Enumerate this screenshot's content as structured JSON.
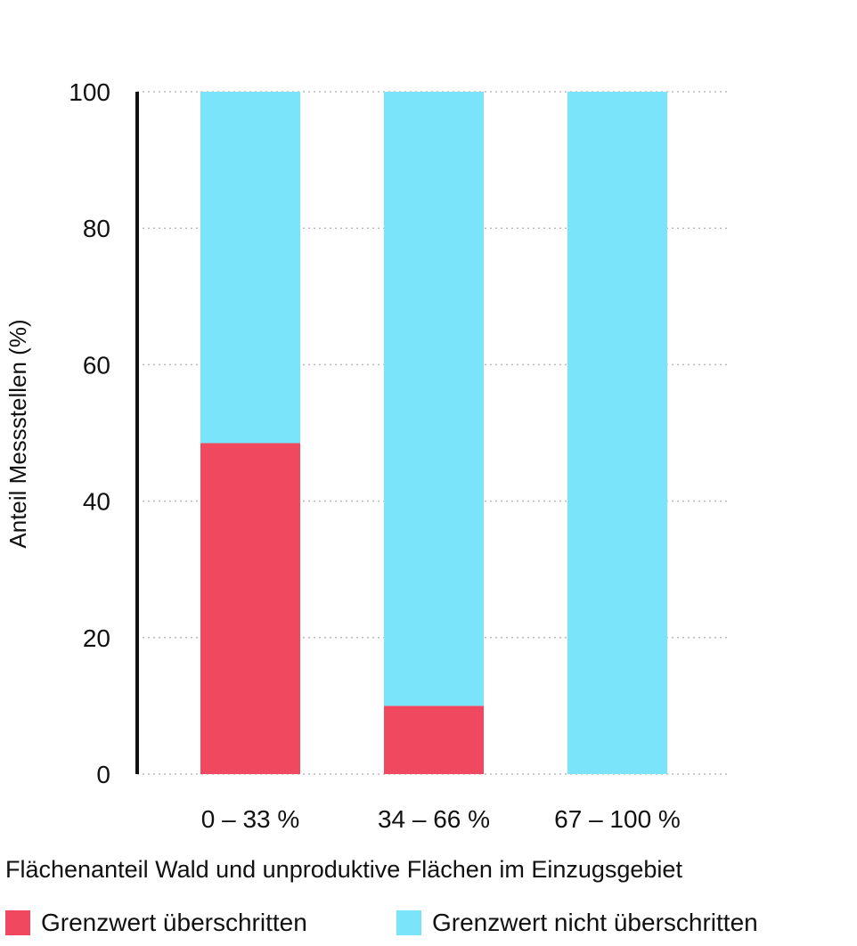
{
  "colors": {
    "exceeded": "#F0485F",
    "not_exceeded": "#7AE4FB",
    "axis": "#111111",
    "grid": "#bbbbbb"
  },
  "chart_data": {
    "type": "bar",
    "stacked": true,
    "title": "",
    "xlabel": "Flächenanteil Wald und unproduktive Flächen im Einzugsgebiet",
    "ylabel": "Anteil Messstellen (%)",
    "ylim": [
      0,
      100
    ],
    "yticks": [
      0,
      20,
      40,
      60,
      80,
      100
    ],
    "categories": [
      "0 – 33 %",
      "34 – 66 %",
      "67 – 100 %"
    ],
    "series": [
      {
        "name": "Grenzwert überschritten",
        "color": "#F0485F",
        "values": [
          48.5,
          10,
          0
        ]
      },
      {
        "name": "Grenzwert nicht überschritten",
        "color": "#7AE4FB",
        "values": [
          51.5,
          90,
          100
        ]
      }
    ],
    "grid": true,
    "grid_style": "dotted",
    "legend_position": "bottom"
  }
}
